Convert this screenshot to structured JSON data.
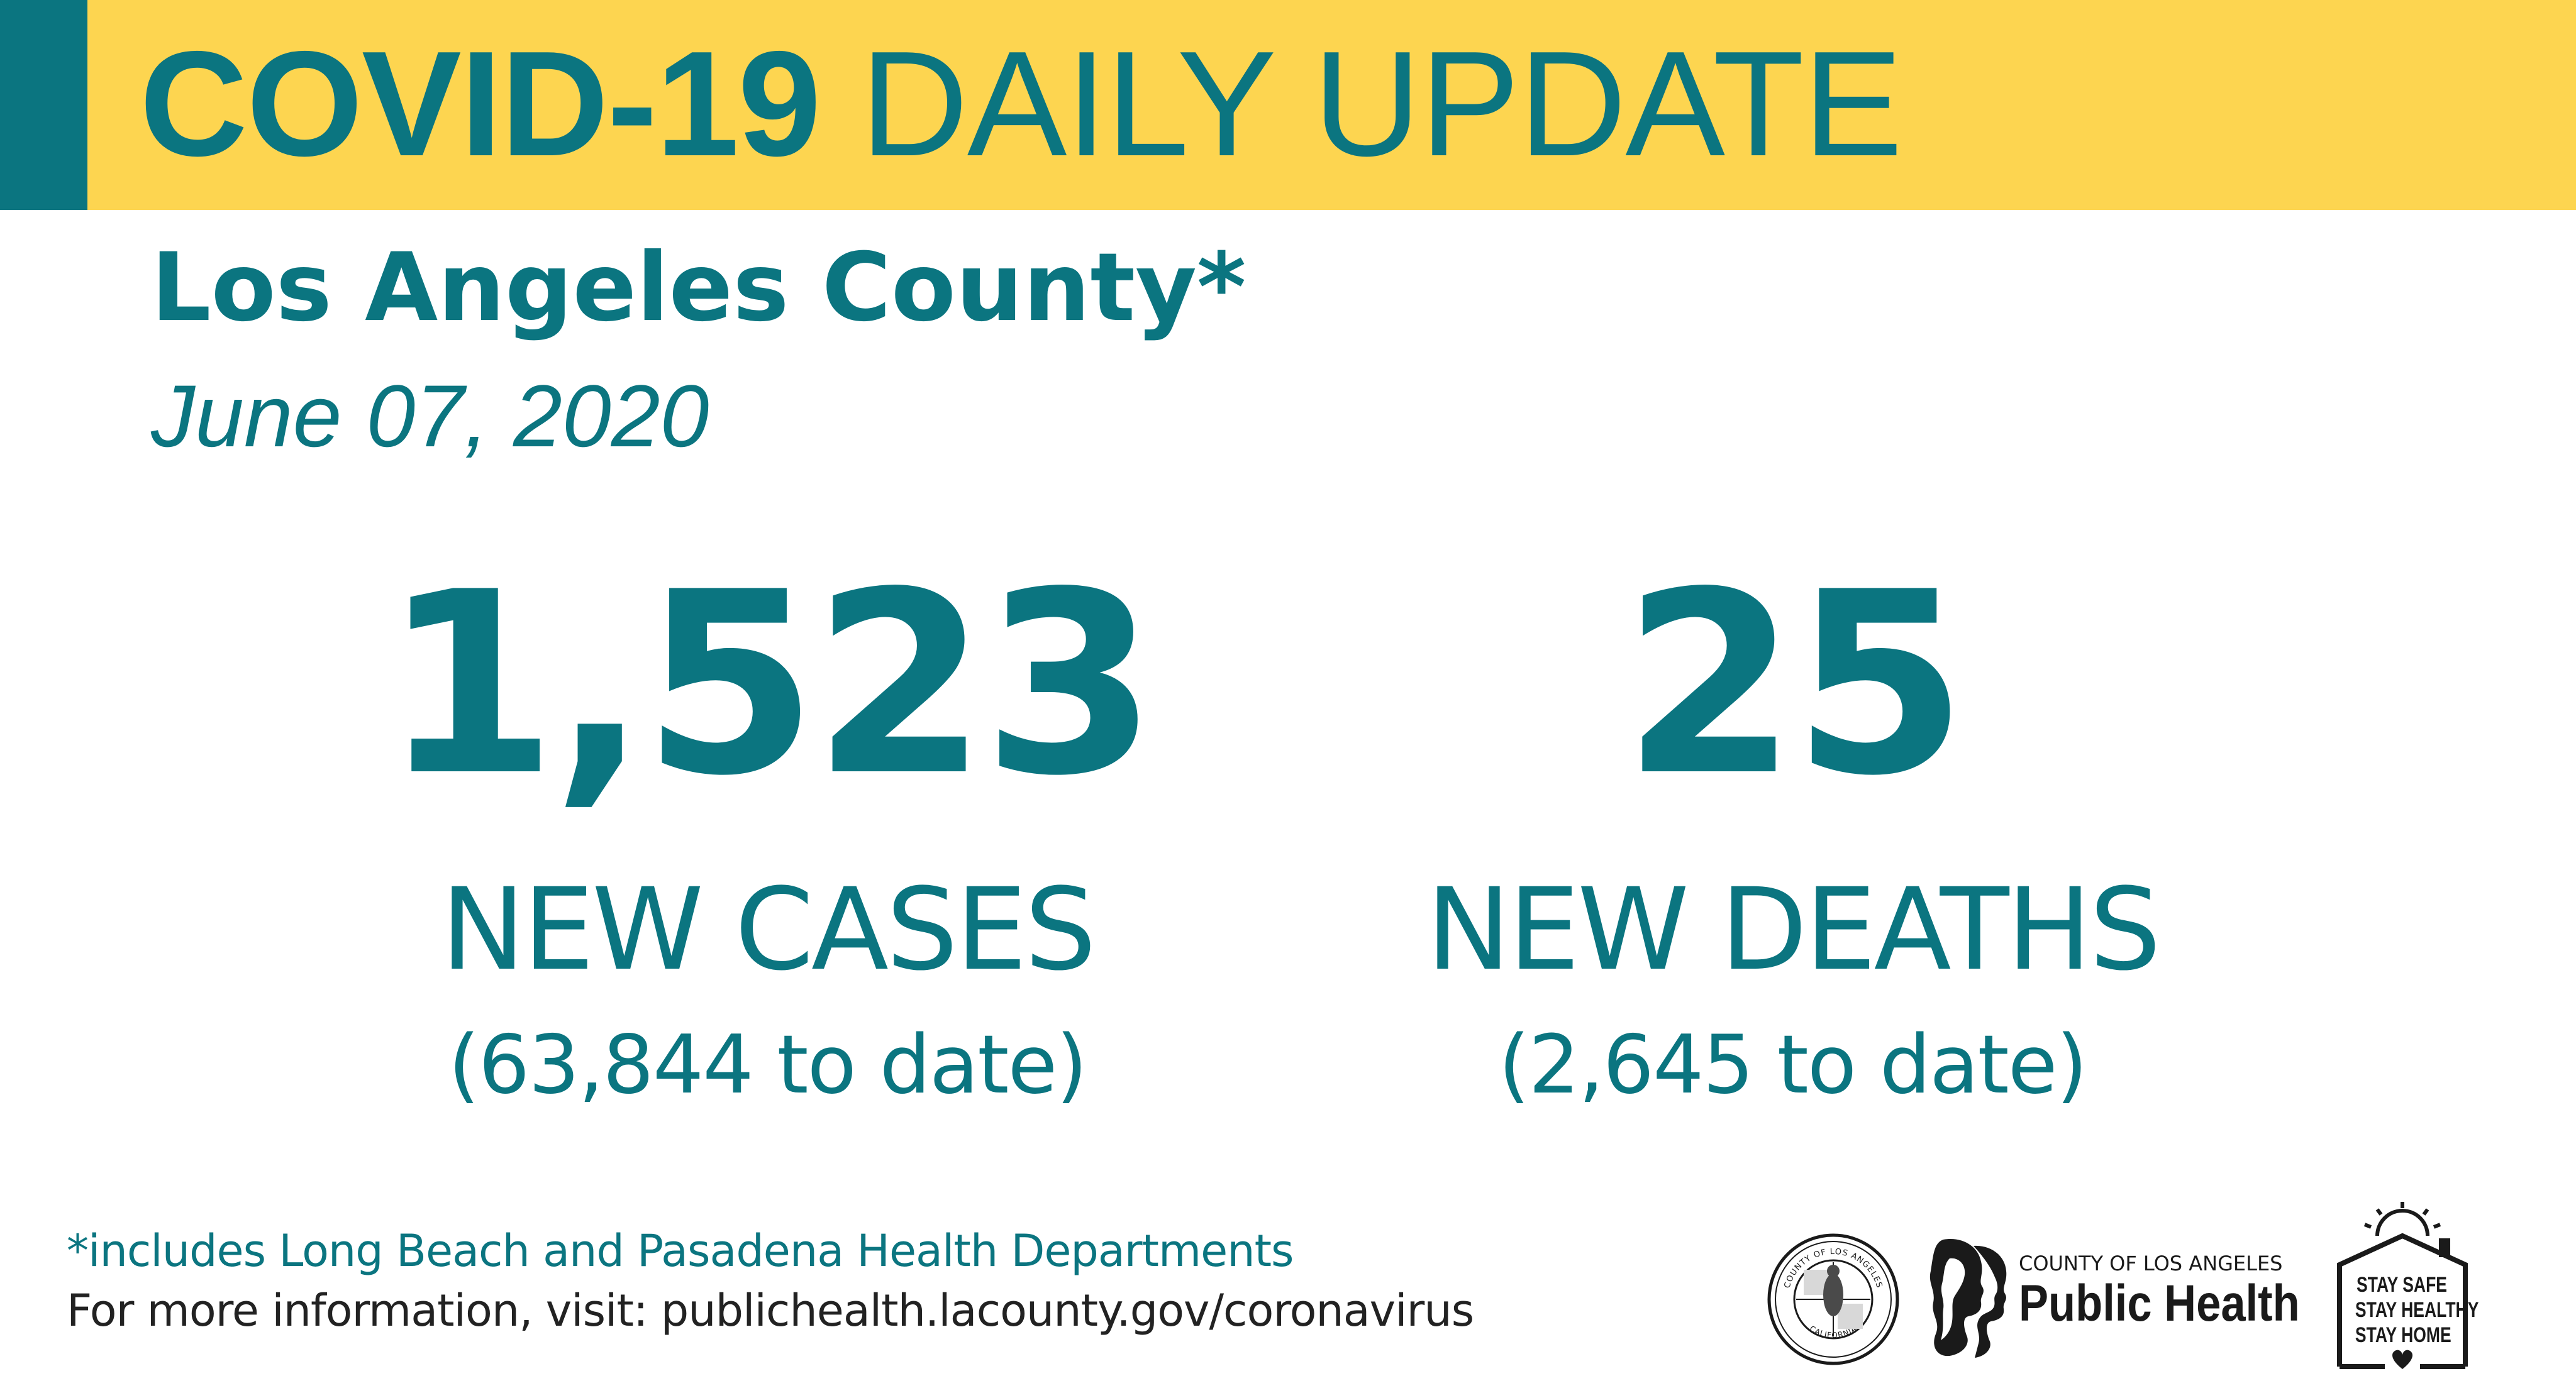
{
  "banner": {
    "title_bold": "COVID-19",
    "title_light": "DAILY UPDATE",
    "background_color": "#fdd550",
    "accent_color": "#0b7580"
  },
  "header": {
    "county": "Los Angeles County*",
    "date": "June 07, 2020"
  },
  "stats": {
    "cases": {
      "number": "1,523",
      "label": "NEW CASES",
      "to_date": "(63,844 to date)"
    },
    "deaths": {
      "number": "25",
      "label": "NEW DEATHS",
      "to_date": "(2,645 to date)"
    }
  },
  "footer": {
    "footnote": "*includes Long Beach and Pasadena Health Departments",
    "more_info": "For more information, visit: publichealth.lacounty.gov/coronavirus"
  },
  "logos": {
    "seal": {
      "icon": "county-seal-icon",
      "top_text": "COUNTY OF LOS ANGELES",
      "bottom_text": "CALIFORNIA"
    },
    "public_health": {
      "icon": "public-health-profiles-icon",
      "small_text": "COUNTY OF LOS ANGELES",
      "big_text": "Public Health"
    },
    "stay_safe": {
      "icon": "house-sun-icon",
      "lines": [
        "STAY SAFE",
        "STAY HEALTHY",
        "STAY HOME"
      ]
    }
  },
  "text_color": "#0b7580"
}
